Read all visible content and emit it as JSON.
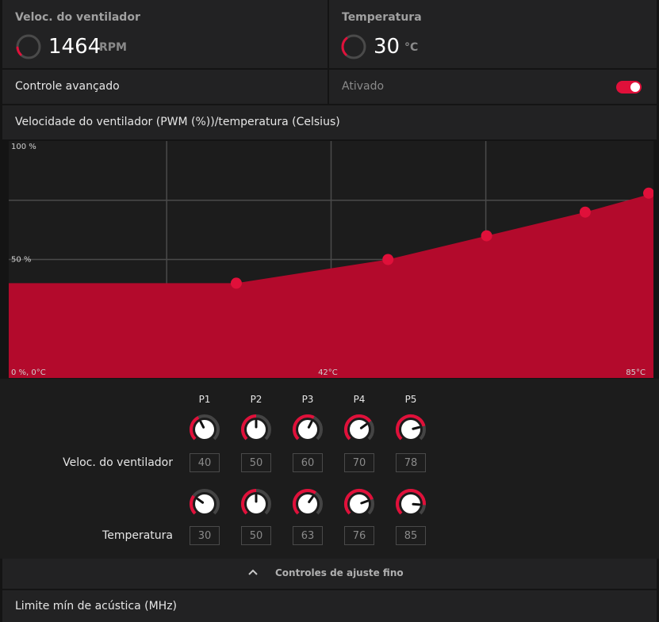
{
  "fan": {
    "label": "Veloc. do ventilador",
    "value": "1464",
    "unit": "RPM",
    "level": 0.15
  },
  "temp": {
    "label": "Temperatura",
    "value": "30",
    "unit": "°C",
    "level": 0.35
  },
  "advanced": {
    "label": "Controle avançado",
    "state_label": "Ativado",
    "enabled": true
  },
  "curve": {
    "title": "Velocidade do ventilador (PWM (%))/temperatura (Celsius)"
  },
  "chart_data": {
    "type": "area",
    "x_label_min": "0 %, 0°C",
    "x_label_mid": "42°C",
    "x_label_max": "85°C",
    "y_label_max": "100 %",
    "y_label_mid": "50 %",
    "xlim": [
      0,
      85
    ],
    "ylim": [
      0,
      100
    ],
    "x": [
      30,
      50,
      63,
      76,
      85
    ],
    "y": [
      40,
      50,
      60,
      70,
      78
    ],
    "fill_color": "#b30a2c",
    "point_color": "#e0103a",
    "grid": true
  },
  "controls": {
    "points": [
      "P1",
      "P2",
      "P3",
      "P4",
      "P5"
    ],
    "fan_label": "Veloc. do ventilador",
    "temp_label": "Temperatura",
    "fan_values": [
      "40",
      "50",
      "60",
      "70",
      "78"
    ],
    "temp_values": [
      "30",
      "50",
      "63",
      "76",
      "85"
    ],
    "fan_levels": [
      0.4,
      0.5,
      0.6,
      0.7,
      0.78
    ],
    "temp_levels": [
      0.3,
      0.5,
      0.63,
      0.76,
      0.85
    ]
  },
  "fine_tune": {
    "label": "Controles de ajuste fino",
    "icon": "chevron-up-icon"
  },
  "acoustic": {
    "label": "Limite mín de acústica (MHz)"
  },
  "colors": {
    "accent": "#e0103a",
    "panel": "#222223",
    "background": "#141414"
  }
}
